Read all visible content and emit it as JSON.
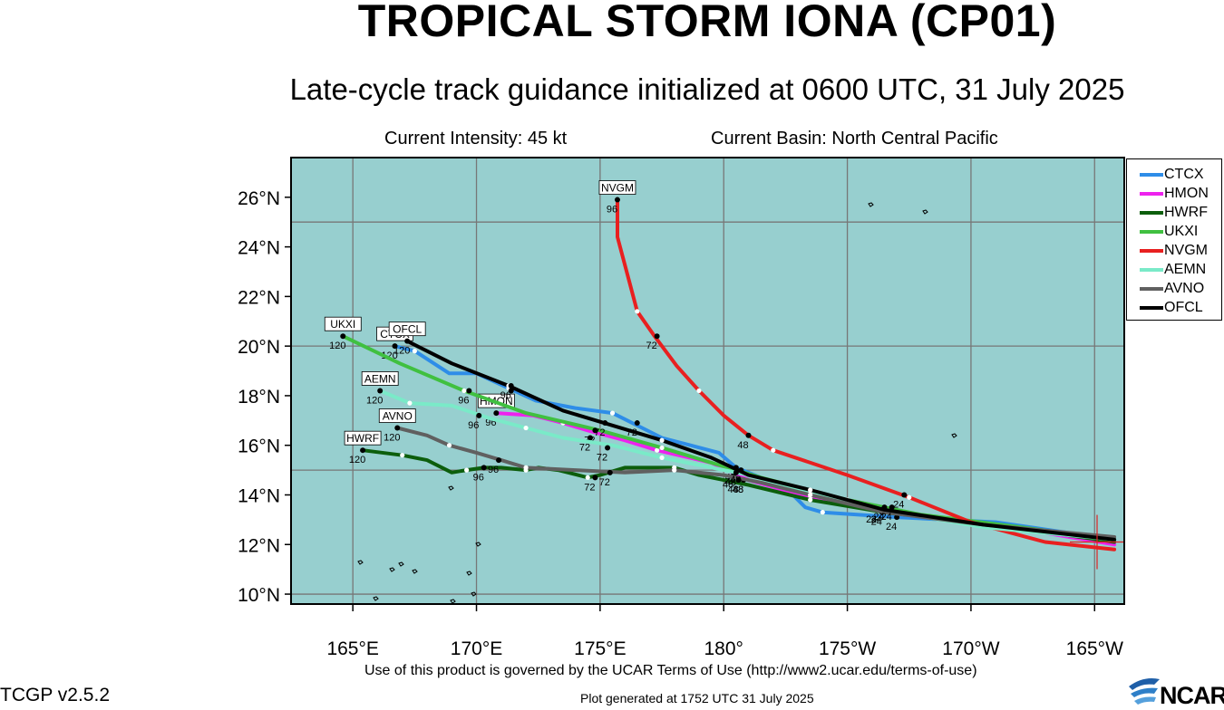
{
  "header": {
    "title": "TROPICAL STORM IONA (CP01)",
    "subtitle": "Late-cycle track guidance initialized at 0600 UTC, 31 July 2025",
    "intensity": "Current Intensity: 45 kt",
    "basin": "Current Basin: North Central Pacific"
  },
  "map": {
    "lon_range": [
      162.5,
      196.2
    ],
    "lat_range": [
      9.6,
      27.6
    ],
    "lat_ticks": [
      {
        "lat": 10,
        "label": "10°N"
      },
      {
        "lat": 12,
        "label": "12°N"
      },
      {
        "lat": 14,
        "label": "14°N"
      },
      {
        "lat": 16,
        "label": "16°N"
      },
      {
        "lat": 18,
        "label": "18°N"
      },
      {
        "lat": 20,
        "label": "20°N"
      },
      {
        "lat": 22,
        "label": "22°N"
      },
      {
        "lat": 24,
        "label": "24°N"
      },
      {
        "lat": 26,
        "label": "26°N"
      }
    ],
    "lon_ticks": [
      {
        "lon": 165,
        "label": "165°E"
      },
      {
        "lon": 170,
        "label": "170°E"
      },
      {
        "lon": 175,
        "label": "175°E"
      },
      {
        "lon": 180,
        "label": "180°"
      },
      {
        "lon": 185,
        "label": "175°W"
      },
      {
        "lon": 190,
        "label": "170°W"
      },
      {
        "lon": 195,
        "label": "165°W"
      }
    ],
    "grid_lons": [
      165,
      170,
      175,
      180,
      185,
      190,
      195
    ],
    "grid_lats": [
      10,
      15,
      20,
      25
    ],
    "colors": {
      "ocean": "#97cfcf",
      "grid": "#777777",
      "land": "#000000"
    },
    "current_position": {
      "lon": 195.1,
      "lat": 12.1
    }
  },
  "models": [
    {
      "name": "CTCX",
      "color": "#2e8de8",
      "track": [
        [
          195.8,
          12.2
        ],
        [
          191,
          12.9
        ],
        [
          187,
          13.1
        ],
        [
          184,
          13.3
        ],
        [
          183.3,
          13.5
        ],
        [
          182.5,
          14.3
        ],
        [
          180.5,
          15.1
        ],
        [
          179.8,
          15.7
        ],
        [
          177.5,
          16.3
        ],
        [
          175.5,
          17.3
        ],
        [
          174,
          17.5
        ],
        [
          172.4,
          17.8
        ],
        [
          171.3,
          18.3
        ],
        [
          170,
          18.9
        ],
        [
          168.9,
          18.9
        ],
        [
          167.5,
          19.8
        ],
        [
          166.7,
          20.0
        ]
      ],
      "points": [
        [
          187,
          13.1,
          "24"
        ],
        [
          180.5,
          15.1,
          "48"
        ],
        [
          176.5,
          16.9,
          "72"
        ],
        [
          171.4,
          18.2,
          "96"
        ],
        [
          166.7,
          20.0,
          "120"
        ]
      ],
      "name_tag": [
        166.7,
        20.0
      ],
      "tag_placement": "above"
    },
    {
      "name": "HMON",
      "color": "#ee22ee",
      "track": [
        [
          195.8,
          12.0
        ],
        [
          191,
          12.8
        ],
        [
          186,
          13.4
        ],
        [
          183.5,
          13.9
        ],
        [
          181,
          14.6
        ],
        [
          179.5,
          15.3
        ],
        [
          177.3,
          15.8
        ],
        [
          176,
          16.2
        ],
        [
          174.5,
          16.6
        ],
        [
          173.5,
          16.9
        ],
        [
          172.3,
          17.2
        ],
        [
          170.8,
          17.3
        ]
      ],
      "points": [
        [
          186.2,
          13.4,
          "24"
        ],
        [
          180.8,
          14.6,
          "48"
        ],
        [
          174.6,
          16.3,
          "72"
        ],
        [
          170.8,
          17.3,
          "96"
        ]
      ],
      "name_tag": [
        170.8,
        17.3
      ],
      "tag_placement": "above"
    },
    {
      "name": "HWRF",
      "color": "#0c5e0c",
      "track": [
        [
          195.8,
          12.1
        ],
        [
          191,
          12.8
        ],
        [
          186.5,
          13.3
        ],
        [
          183.5,
          13.8
        ],
        [
          181,
          14.4
        ],
        [
          179,
          14.8
        ],
        [
          178,
          15.1
        ],
        [
          176,
          15.1
        ],
        [
          175,
          14.8
        ],
        [
          174.5,
          14.7
        ],
        [
          173.3,
          15.0
        ],
        [
          172.5,
          15.1
        ],
        [
          172,
          15.0
        ],
        [
          171,
          15.1
        ],
        [
          170.3,
          15.1
        ],
        [
          169.6,
          15.0
        ],
        [
          169,
          14.9
        ],
        [
          168,
          15.4
        ],
        [
          167,
          15.6
        ],
        [
          165.4,
          15.8
        ]
      ],
      "points": [
        [
          186.4,
          13.3,
          "24"
        ],
        [
          180.8,
          14.6,
          "48"
        ],
        [
          174.8,
          14.7,
          "72"
        ],
        [
          170.3,
          15.1,
          "96"
        ],
        [
          165.4,
          15.8,
          "120"
        ]
      ],
      "name_tag": [
        165.4,
        15.8
      ],
      "tag_placement": "above"
    },
    {
      "name": "UKXI",
      "color": "#40c040",
      "track": [
        [
          195.8,
          12.2
        ],
        [
          192,
          12.7
        ],
        [
          188,
          13.2
        ],
        [
          185,
          13.8
        ],
        [
          181.5,
          14.7
        ],
        [
          179.5,
          15.3
        ],
        [
          177.5,
          15.9
        ],
        [
          175,
          16.6
        ],
        [
          172,
          17.3
        ],
        [
          169.5,
          18.2
        ],
        [
          166.9,
          19.3
        ],
        [
          164.6,
          20.4
        ]
      ],
      "points": [
        [
          186.4,
          13.4,
          "24"
        ],
        [
          180.4,
          14.8,
          "48"
        ],
        [
          174.8,
          16.6,
          "72"
        ],
        [
          169.7,
          18.2,
          "96"
        ],
        [
          164.6,
          20.4,
          "120"
        ]
      ],
      "name_tag": [
        164.6,
        20.4
      ],
      "tag_placement": "above"
    },
    {
      "name": "NVGM",
      "color": "#e82020",
      "track": [
        [
          195.8,
          11.8
        ],
        [
          193,
          12.1
        ],
        [
          190,
          12.9
        ],
        [
          187.5,
          13.9
        ],
        [
          185,
          14.8
        ],
        [
          183.5,
          15.3
        ],
        [
          182,
          15.8
        ],
        [
          181,
          16.4
        ],
        [
          180,
          17.2
        ],
        [
          179,
          18.2
        ],
        [
          178.1,
          19.2
        ],
        [
          177.2,
          20.4
        ],
        [
          176.5,
          21.4
        ],
        [
          176.1,
          22.9
        ],
        [
          175.7,
          24.4
        ],
        [
          175.7,
          25.9
        ]
      ],
      "points": [
        [
          187.3,
          14.0,
          "24"
        ],
        [
          181.0,
          16.4,
          "48"
        ],
        [
          177.3,
          20.4,
          "72"
        ],
        [
          175.7,
          25.9,
          "96"
        ]
      ],
      "name_tag": [
        175.7,
        25.9
      ],
      "tag_placement": "above"
    },
    {
      "name": "AEMN",
      "color": "#7aeac8",
      "track": [
        [
          195.8,
          12.2
        ],
        [
          190.5,
          12.7
        ],
        [
          187,
          13.3
        ],
        [
          183.5,
          14.1
        ],
        [
          181,
          14.8
        ],
        [
          179,
          15.2
        ],
        [
          177.5,
          15.5
        ],
        [
          175.5,
          16.0
        ],
        [
          173.5,
          16.3
        ],
        [
          172,
          16.7
        ],
        [
          170.5,
          17.1
        ],
        [
          169,
          17.6
        ],
        [
          167.3,
          17.7
        ],
        [
          166.1,
          18.2
        ]
      ],
      "points": [
        [
          186.4,
          13.4,
          "24"
        ],
        [
          180.5,
          14.9,
          "48"
        ],
        [
          175.3,
          15.9,
          "72"
        ],
        [
          170.1,
          17.2,
          "96"
        ],
        [
          166.1,
          18.2,
          "120"
        ]
      ],
      "name_tag": [
        166.1,
        18.2
      ],
      "tag_placement": "above"
    },
    {
      "name": "AVNO",
      "color": "#606060",
      "track": [
        [
          195.8,
          12.3
        ],
        [
          190.5,
          12.8
        ],
        [
          186.5,
          13.3
        ],
        [
          183.5,
          14.0
        ],
        [
          181.5,
          14.5
        ],
        [
          180,
          14.8
        ],
        [
          178,
          15.0
        ],
        [
          176,
          14.9
        ],
        [
          174,
          15.0
        ],
        [
          172,
          15.1
        ],
        [
          171,
          15.4
        ],
        [
          170,
          15.7
        ],
        [
          168.9,
          16.0
        ],
        [
          168,
          16.4
        ],
        [
          166.8,
          16.7
        ]
      ],
      "points": [
        [
          186.5,
          13.5,
          "24"
        ],
        [
          180.6,
          14.6,
          "48"
        ],
        [
          175.4,
          14.9,
          "72"
        ],
        [
          170.9,
          15.4,
          "96"
        ],
        [
          166.8,
          16.7,
          "120"
        ]
      ],
      "name_tag": [
        166.8,
        16.7
      ],
      "tag_placement": "above"
    },
    {
      "name": "OFCL",
      "color": "#000000",
      "track": [
        [
          195.8,
          12.2
        ],
        [
          190.5,
          12.8
        ],
        [
          186.5,
          13.4
        ],
        [
          183.5,
          14.2
        ],
        [
          181,
          14.8
        ],
        [
          179.5,
          15.5
        ],
        [
          177.5,
          16.2
        ],
        [
          175.5,
          16.8
        ],
        [
          173.5,
          17.4
        ],
        [
          171.3,
          18.4
        ],
        [
          169,
          19.3
        ],
        [
          167.2,
          20.2
        ]
      ],
      "points": [
        [
          186.8,
          13.5,
          "24"
        ],
        [
          180.7,
          15.0,
          "48"
        ],
        [
          175.2,
          16.9,
          "72"
        ],
        [
          171.4,
          18.4,
          "96"
        ],
        [
          167.2,
          20.2,
          "120"
        ]
      ],
      "name_tag": [
        167.2,
        20.2
      ],
      "tag_placement": "above"
    }
  ],
  "footer": {
    "terms": "Use of this product is governed by the UCAR Terms of Use (http://www2.ucar.edu/terms-of-use)",
    "version": "TCGP v2.5.2",
    "generated": "Plot generated at 1752 UTC   31 July 2025",
    "logo": "NCAR"
  }
}
